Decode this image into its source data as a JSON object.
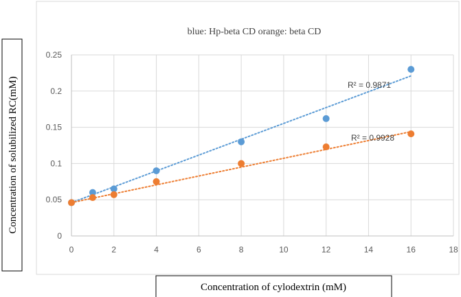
{
  "chart_data": {
    "type": "scatter",
    "title": "blue: Hp-beta CD  orange: beta CD",
    "xlabel": "Concentration of cylodextrin (mM)",
    "ylabel": "Concentration of  solubilized RC(mM)",
    "xlim": [
      0,
      18
    ],
    "ylim": [
      0,
      0.25
    ],
    "x_ticks": [
      0,
      2,
      4,
      6,
      8,
      10,
      12,
      14,
      16,
      18
    ],
    "y_ticks": [
      0,
      0.05,
      0.1,
      0.15,
      0.2,
      0.25
    ],
    "x_tick_labels": [
      "0",
      "2",
      "4",
      "6",
      "8",
      "10",
      "12",
      "14",
      "16",
      "18"
    ],
    "y_tick_labels": [
      "0",
      "0.05",
      "0.1",
      "0.15",
      "0.2",
      "0.25"
    ],
    "grid": true,
    "legend": "none",
    "series": [
      {
        "color": "#5b9bd5",
        "x": [
          0,
          1,
          2,
          4,
          8,
          12,
          16
        ],
        "y": [
          0.046,
          0.06,
          0.065,
          0.09,
          0.13,
          0.162,
          0.23
        ],
        "trendline": {
          "type": "linear",
          "x": [
            0,
            16
          ],
          "y": [
            0.046,
            0.221
          ],
          "style": "dotted"
        },
        "r2_label": "R² = 0.9871"
      },
      {
        "color": "#ed7d31",
        "x": [
          0,
          1,
          2,
          4,
          8,
          12,
          16
        ],
        "y": [
          0.046,
          0.053,
          0.057,
          0.075,
          0.1,
          0.123,
          0.141
        ],
        "trendline": {
          "type": "linear",
          "x": [
            0,
            16
          ],
          "y": [
            0.046,
            0.144
          ],
          "style": "dotted"
        },
        "r2_label": "R² = 0.9928"
      }
    ]
  }
}
